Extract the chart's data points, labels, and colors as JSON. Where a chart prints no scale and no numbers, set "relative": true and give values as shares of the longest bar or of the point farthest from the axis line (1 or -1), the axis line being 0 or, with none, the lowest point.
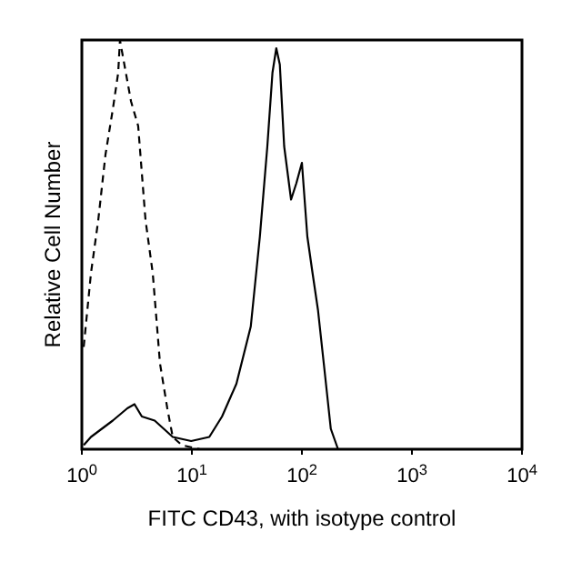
{
  "chart_data": {
    "type": "line",
    "relative": true,
    "log": "x",
    "xlabel": "FITC CD43, with isotype control",
    "ylabel": "Relative Cell Number",
    "xlim": [
      1,
      10000
    ],
    "xticks": [
      {
        "value": 1,
        "label": "10$^{0}$"
      },
      {
        "value": 10,
        "label": "10$^{1}$"
      },
      {
        "value": 100,
        "label": "10$^{2}$"
      },
      {
        "value": 1000,
        "label": "10$^{3}$"
      },
      {
        "value": 10000,
        "label": "10$^{4}$"
      }
    ],
    "series": [
      {
        "color": "#000000",
        "line_style": "dashed",
        "x": [
          1.04,
          1.21,
          1.41,
          1.64,
          1.91,
          2.14,
          2.22,
          2.59,
          2.8,
          3.25,
          3.79,
          4.41,
          5.13,
          5.98,
          6.7,
          8.1,
          11.9,
          54,
          363,
          10000
        ],
        "values": [
          0.25,
          0.43,
          0.56,
          0.72,
          0.83,
          0.92,
          1,
          0.9,
          0.85,
          0.79,
          0.56,
          0.43,
          0.21,
          0.1,
          0.03,
          0.01,
          0,
          0,
          0,
          0
        ]
      },
      {
        "color": "#000000",
        "line_style": "solid",
        "x": [
          1.04,
          1.21,
          1.52,
          1.91,
          2.59,
          3.01,
          3.51,
          4.59,
          6.7,
          9.85,
          14.4,
          18.8,
          25.4,
          34.3,
          41.5,
          48.5,
          54,
          58.5,
          63,
          69,
          79.7,
          89,
          100,
          112,
          125,
          140,
          158,
          183,
          213,
          10000
        ],
        "values": [
          0.01,
          0.03,
          0.05,
          0.07,
          0.1,
          0.11,
          0.08,
          0.07,
          0.03,
          0.02,
          0.03,
          0.08,
          0.16,
          0.3,
          0.52,
          0.74,
          0.92,
          0.98,
          0.94,
          0.74,
          0.61,
          0.65,
          0.7,
          0.52,
          0.43,
          0.34,
          0.21,
          0.05,
          0,
          0
        ]
      }
    ]
  }
}
